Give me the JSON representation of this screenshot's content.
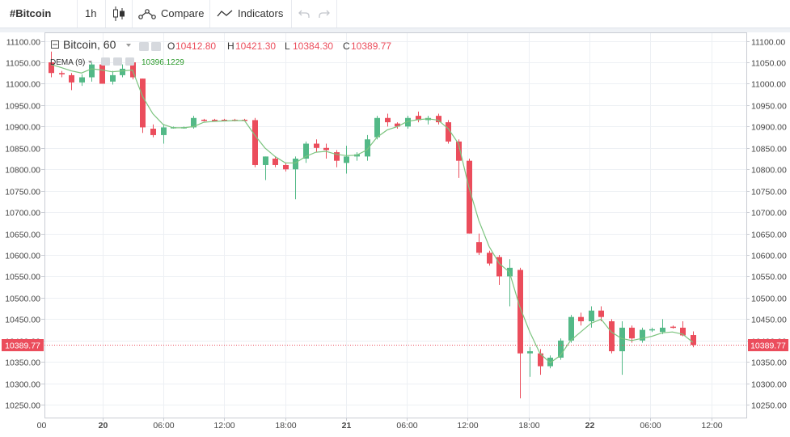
{
  "toolbar": {
    "symbol": "#Bitcoin",
    "interval": "1h",
    "compare_label": "Compare",
    "indicators_label": "Indicators"
  },
  "legend": {
    "title": "Bitcoin, 60",
    "o_label": "O",
    "o_value": "10412.80",
    "h_label": "H",
    "h_value": "10421.30",
    "l_label": "L",
    "l_value": "10384.30",
    "c_label": "C",
    "c_value": "10389.77",
    "indicator_label": "DEMA (9)",
    "indicator_value": "10396.1229"
  },
  "colors": {
    "up": "#53b987",
    "down": "#eb4d5c",
    "dema": "#7cc47f",
    "grid": "#edf0f4",
    "axis_text": "#444444"
  },
  "chart_data": {
    "type": "candlestick",
    "interval_hours": 1,
    "ylim": [
      10220,
      11120
    ],
    "y_ticks": [
      10250,
      10300,
      10350,
      10400,
      10450,
      10500,
      10550,
      10600,
      10650,
      10700,
      10750,
      10800,
      10850,
      10900,
      10950,
      11000,
      11050,
      11100
    ],
    "y_tick_labels": [
      "10250.00",
      "10300.00",
      "10350.00",
      "10400.00",
      "10450.00",
      "10500.00",
      "10550.00",
      "10600.00",
      "10650.00",
      "10700.00",
      "10750.00",
      "10800.00",
      "10850.00",
      "10900.00",
      "10950.00",
      "11000.00",
      "11050.00",
      "11100.00"
    ],
    "x_tick_labels": [
      "00",
      "20",
      "06:00",
      "12:00",
      "18:00",
      "21",
      "06:00",
      "12:00",
      "18:00",
      "22",
      "06:00",
      "12:00"
    ],
    "last_price": 10389.77,
    "last_price_label": "10389.77",
    "candles": [
      {
        "t": 0,
        "o": 11050,
        "h": 11075,
        "l": 11015,
        "c": 11025
      },
      {
        "t": 1,
        "o": 11025,
        "h": 11030,
        "l": 11015,
        "c": 11022
      },
      {
        "t": 2,
        "o": 11020,
        "h": 11025,
        "l": 10985,
        "c": 11003
      },
      {
        "t": 3,
        "o": 11003,
        "h": 11022,
        "l": 10995,
        "c": 11015
      },
      {
        "t": 4,
        "o": 11015,
        "h": 11050,
        "l": 11005,
        "c": 11045
      },
      {
        "t": 5,
        "o": 11045,
        "h": 11050,
        "l": 11000,
        "c": 11000
      },
      {
        "t": 6,
        "o": 11005,
        "h": 11030,
        "l": 10998,
        "c": 11020
      },
      {
        "t": 7,
        "o": 11020,
        "h": 11045,
        "l": 11015,
        "c": 11035
      },
      {
        "t": 8,
        "o": 11050,
        "h": 11055,
        "l": 11010,
        "c": 11015
      },
      {
        "t": 9,
        "o": 11012,
        "h": 11012,
        "l": 10885,
        "c": 10898
      },
      {
        "t": 10,
        "o": 10895,
        "h": 10905,
        "l": 10875,
        "c": 10880
      },
      {
        "t": 11,
        "o": 10880,
        "h": 10905,
        "l": 10860,
        "c": 10898
      },
      {
        "t": 12,
        "o": 10897,
        "h": 10900,
        "l": 10895,
        "c": 10897
      },
      {
        "t": 13,
        "o": 10897,
        "h": 10900,
        "l": 10895,
        "c": 10897
      },
      {
        "t": 14,
        "o": 10898,
        "h": 10925,
        "l": 10895,
        "c": 10920
      },
      {
        "t": 15,
        "o": 10915,
        "h": 10918,
        "l": 10912,
        "c": 10914
      },
      {
        "t": 16,
        "o": 10915,
        "h": 10918,
        "l": 10912,
        "c": 10914
      },
      {
        "t": 17,
        "o": 10915,
        "h": 10918,
        "l": 10912,
        "c": 10914
      },
      {
        "t": 18,
        "o": 10915,
        "h": 10918,
        "l": 10912,
        "c": 10914
      },
      {
        "t": 19,
        "o": 10915,
        "h": 10918,
        "l": 10912,
        "c": 10914
      },
      {
        "t": 20,
        "o": 10915,
        "h": 10920,
        "l": 10805,
        "c": 10810
      },
      {
        "t": 21,
        "o": 10810,
        "h": 10830,
        "l": 10775,
        "c": 10830
      },
      {
        "t": 22,
        "o": 10825,
        "h": 10830,
        "l": 10805,
        "c": 10810
      },
      {
        "t": 23,
        "o": 10810,
        "h": 10815,
        "l": 10795,
        "c": 10800
      },
      {
        "t": 24,
        "o": 10800,
        "h": 10830,
        "l": 10730,
        "c": 10825
      },
      {
        "t": 25,
        "o": 10825,
        "h": 10865,
        "l": 10815,
        "c": 10860
      },
      {
        "t": 26,
        "o": 10860,
        "h": 10870,
        "l": 10840,
        "c": 10850
      },
      {
        "t": 27,
        "o": 10850,
        "h": 10860,
        "l": 10825,
        "c": 10845
      },
      {
        "t": 28,
        "o": 10840,
        "h": 10845,
        "l": 10805,
        "c": 10820
      },
      {
        "t": 29,
        "o": 10815,
        "h": 10855,
        "l": 10790,
        "c": 10830
      },
      {
        "t": 30,
        "o": 10830,
        "h": 10840,
        "l": 10820,
        "c": 10835
      },
      {
        "t": 31,
        "o": 10830,
        "h": 10880,
        "l": 10820,
        "c": 10870
      },
      {
        "t": 32,
        "o": 10875,
        "h": 10925,
        "l": 10870,
        "c": 10920
      },
      {
        "t": 33,
        "o": 10920,
        "h": 10930,
        "l": 10900,
        "c": 10910
      },
      {
        "t": 34,
        "o": 10907,
        "h": 10910,
        "l": 10895,
        "c": 10900
      },
      {
        "t": 35,
        "o": 10900,
        "h": 10925,
        "l": 10895,
        "c": 10920
      },
      {
        "t": 36,
        "o": 10925,
        "h": 10935,
        "l": 10910,
        "c": 10915
      },
      {
        "t": 37,
        "o": 10915,
        "h": 10925,
        "l": 10905,
        "c": 10920
      },
      {
        "t": 38,
        "o": 10925,
        "h": 10930,
        "l": 10905,
        "c": 10910
      },
      {
        "t": 39,
        "o": 10910,
        "h": 10915,
        "l": 10860,
        "c": 10865
      },
      {
        "t": 40,
        "o": 10865,
        "h": 10870,
        "l": 10780,
        "c": 10820
      },
      {
        "t": 41,
        "o": 10820,
        "h": 10825,
        "l": 10650,
        "c": 10650
      },
      {
        "t": 42,
        "o": 10630,
        "h": 10650,
        "l": 10600,
        "c": 10605
      },
      {
        "t": 43,
        "o": 10605,
        "h": 10610,
        "l": 10575,
        "c": 10580
      },
      {
        "t": 44,
        "o": 10595,
        "h": 10600,
        "l": 10530,
        "c": 10550
      },
      {
        "t": 45,
        "o": 10550,
        "h": 10590,
        "l": 10480,
        "c": 10570
      },
      {
        "t": 46,
        "o": 10565,
        "h": 10570,
        "l": 10265,
        "c": 10370
      },
      {
        "t": 47,
        "o": 10370,
        "h": 10385,
        "l": 10315,
        "c": 10375
      },
      {
        "t": 48,
        "o": 10370,
        "h": 10380,
        "l": 10320,
        "c": 10340
      },
      {
        "t": 49,
        "o": 10340,
        "h": 10365,
        "l": 10335,
        "c": 10360
      },
      {
        "t": 50,
        "o": 10360,
        "h": 10405,
        "l": 10355,
        "c": 10400
      },
      {
        "t": 51,
        "o": 10400,
        "h": 10460,
        "l": 10395,
        "c": 10455
      },
      {
        "t": 52,
        "o": 10455,
        "h": 10465,
        "l": 10435,
        "c": 10445
      },
      {
        "t": 53,
        "o": 10445,
        "h": 10480,
        "l": 10430,
        "c": 10470
      },
      {
        "t": 54,
        "o": 10470,
        "h": 10480,
        "l": 10445,
        "c": 10455
      },
      {
        "t": 55,
        "o": 10445,
        "h": 10450,
        "l": 10370,
        "c": 10375
      },
      {
        "t": 56,
        "o": 10375,
        "h": 10445,
        "l": 10320,
        "c": 10430
      },
      {
        "t": 57,
        "o": 10430,
        "h": 10435,
        "l": 10395,
        "c": 10405
      },
      {
        "t": 58,
        "o": 10400,
        "h": 10430,
        "l": 10395,
        "c": 10425
      },
      {
        "t": 59,
        "o": 10425,
        "h": 10430,
        "l": 10420,
        "c": 10425
      },
      {
        "t": 60,
        "o": 10420,
        "h": 10450,
        "l": 10415,
        "c": 10430
      },
      {
        "t": 61,
        "o": 10432,
        "h": 10435,
        "l": 10428,
        "c": 10430
      },
      {
        "t": 62,
        "o": 10430,
        "h": 10445,
        "l": 10410,
        "c": 10412
      },
      {
        "t": 63,
        "o": 10412.8,
        "h": 10421.3,
        "l": 10384.3,
        "c": 10389.77
      }
    ],
    "dema": [
      11045,
      11038,
      11030,
      11025,
      11035,
      11032,
      11028,
      11030,
      11032,
      10970,
      10930,
      10905,
      10897,
      10897,
      10900,
      10910,
      10912,
      10913,
      10914,
      10914,
      10880,
      10850,
      10830,
      10815,
      10815,
      10830,
      10840,
      10842,
      10835,
      10832,
      10833,
      10845,
      10875,
      10892,
      10900,
      10912,
      10916,
      10918,
      10915,
      10895,
      10860,
      10760,
      10680,
      10620,
      10580,
      10560,
      10480,
      10420,
      10370,
      10348,
      10365,
      10400,
      10420,
      10440,
      10450,
      10420,
      10405,
      10400,
      10405,
      10410,
      10418,
      10420,
      10415,
      10396.12
    ]
  }
}
